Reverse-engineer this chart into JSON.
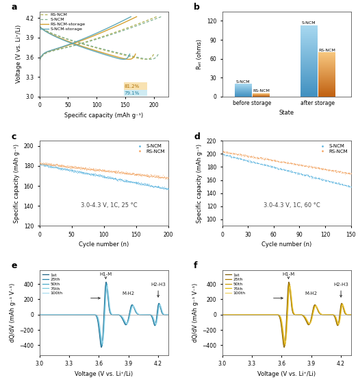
{
  "panel_a": {
    "title": "a",
    "xlabel": "Specific capacity (mAh g⁻¹)",
    "ylabel": "Voltage (V vs. Li⁺/Li)",
    "ylim": [
      3.0,
      4.3
    ],
    "xlim": [
      0,
      225
    ],
    "legend": [
      "RS-NCM",
      "S-NCM",
      "RS-NCM-storage",
      "S-NCM-storage"
    ],
    "colors_dotted": [
      "#b0b050",
      "#80b090"
    ],
    "colors_solid": [
      "#d4a030",
      "#60a8b8"
    ],
    "annotation_81": "81.2%",
    "annotation_79": "79.1%",
    "color_81": "#c8a000",
    "color_79": "#60a8b8"
  },
  "panel_b": {
    "title": "b",
    "ylabel": "Rₑₜ (ohms)",
    "xlabel": "State",
    "ylim": [
      0,
      135
    ],
    "yticks": [
      0,
      30,
      60,
      90,
      120
    ],
    "groups": [
      "before storage",
      "after storage"
    ],
    "val_before_sncm": 20,
    "val_before_rsncm": 5,
    "val_after_sncm": 113,
    "val_after_rsncm": 70
  },
  "panel_c": {
    "title": "c",
    "xlabel": "Cycle number (n)",
    "ylabel": "Specific capacity (mAh g⁻¹)",
    "ylim": [
      120,
      205
    ],
    "xlim": [
      0,
      200
    ],
    "annotation": "3.0-4.3 V, 1C, 25 °C",
    "color_sncm": "#5ab4e0",
    "color_rsncm": "#f4a460",
    "start_sncm": 182,
    "end_sncm": 157,
    "start_rsncm": 183,
    "end_rsncm": 168
  },
  "panel_d": {
    "title": "d",
    "xlabel": "Cycle number (n)",
    "ylabel": "Specific capacity (mAh g⁻¹)",
    "ylim": [
      90,
      220
    ],
    "xlim": [
      0,
      150
    ],
    "annotation": "3.0-4.3 V, 1C, 60 °C",
    "color_sncm": "#5ab4e0",
    "color_rsncm": "#f4a460",
    "start_sncm": 200,
    "end_sncm": 150,
    "start_rsncm": 204,
    "end_rsncm": 170
  },
  "panel_e": {
    "title": "e",
    "xlabel": "Voltage (V vs. Li⁺/Li)",
    "ylabel": "dQ/dV (mAh g⁻¹ V⁻¹)",
    "ylim": [
      -530,
      580
    ],
    "xlim": [
      3.0,
      4.3
    ],
    "legend": [
      "1st",
      "25th",
      "50th",
      "75th",
      "100th"
    ],
    "colors": [
      "#1a5f80",
      "#2680a8",
      "#4aaac8",
      "#78c8de",
      "#a8ddf0"
    ]
  },
  "panel_f": {
    "title": "f",
    "xlabel": "Voltage (V vs. Li⁺/Li)",
    "ylabel": "dQ/dV (mAh g⁻¹ V⁻¹)",
    "ylim": [
      -530,
      580
    ],
    "xlim": [
      3.0,
      4.3
    ],
    "legend": [
      "1st",
      "25th",
      "50th",
      "75th",
      "100th"
    ],
    "colors": [
      "#7a5800",
      "#a87800",
      "#c89800",
      "#e0b800",
      "#f0d060"
    ]
  },
  "bg": "#ffffff"
}
